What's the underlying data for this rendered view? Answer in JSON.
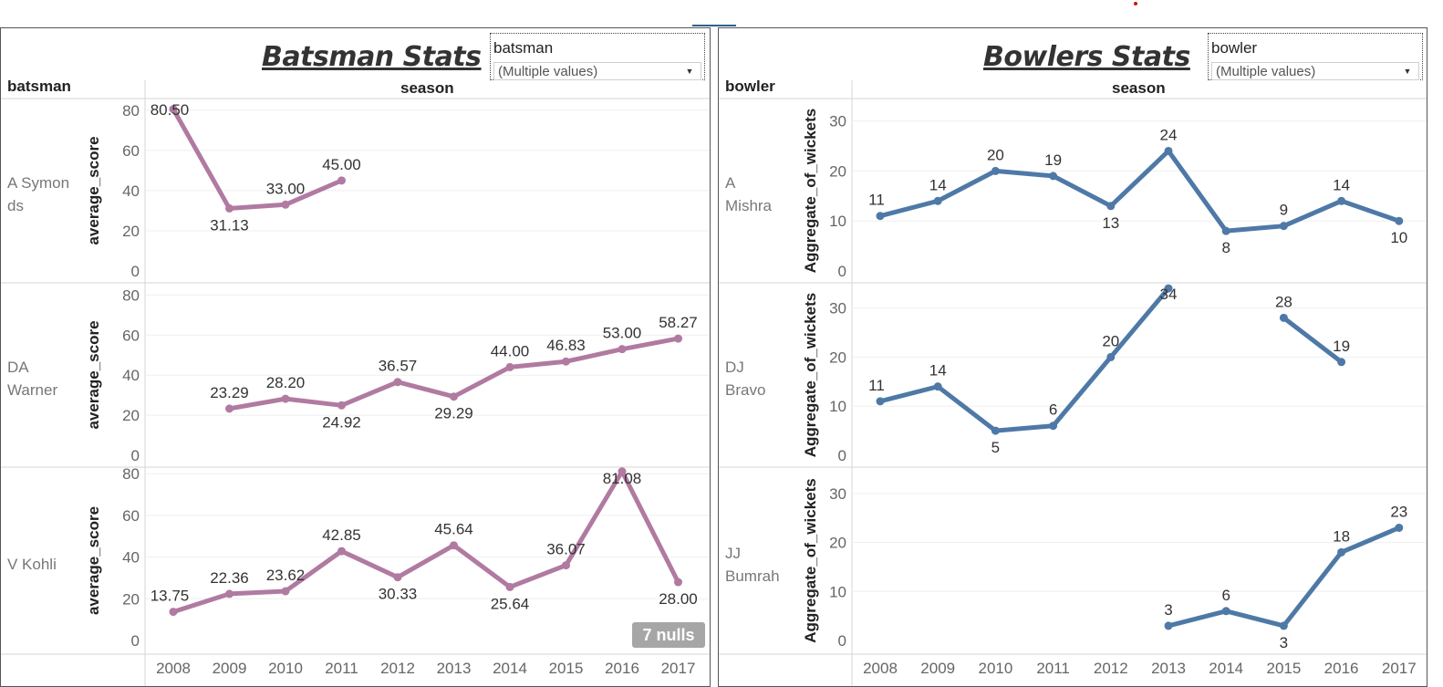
{
  "left": {
    "title": "Batsman Stats",
    "filter_label": "batsman",
    "filter_value": "(Multiple values)",
    "row_header": "batsman",
    "col_header": "season",
    "y_title": "average_score",
    "nulls_badge": "7 nulls",
    "rows": [
      {
        "label": "A Symon\nds"
      },
      {
        "label": "DA\nWarner"
      },
      {
        "label": "V Kohli"
      }
    ]
  },
  "right": {
    "title": "Bowlers Stats",
    "filter_label": "bowler",
    "filter_value": "(Multiple values)",
    "row_header": "bowler",
    "col_header": "season",
    "y_title": "Aggregate_of_wickets",
    "rows": [
      {
        "label": "A\nMishra"
      },
      {
        "label": "DJ\nBravo"
      },
      {
        "label": "JJ\nBumrah"
      }
    ]
  },
  "chart_data": [
    {
      "type": "line",
      "title": "Batsman Stats",
      "xlabel": "season",
      "ylabel": "average_score",
      "x": [
        2008,
        2009,
        2010,
        2011,
        2012,
        2013,
        2014,
        2015,
        2016,
        2017
      ],
      "ylim": [
        0,
        80
      ],
      "yticks": [
        0,
        20,
        40,
        60,
        80
      ],
      "color": "#b07aa1",
      "series": [
        {
          "name": "A Symonds",
          "values": [
            80.5,
            31.13,
            33.0,
            45.0,
            null,
            null,
            null,
            null,
            null,
            null
          ],
          "labels": [
            "80.50",
            "31.13",
            "33.00",
            "45.00",
            null,
            null,
            null,
            null,
            null,
            null
          ]
        },
        {
          "name": "DA Warner",
          "values": [
            null,
            23.29,
            28.2,
            24.92,
            36.57,
            29.29,
            44.0,
            46.83,
            53.0,
            58.27
          ],
          "labels": [
            null,
            "23.29",
            "28.20",
            "24.92",
            "36.57",
            "29.29",
            "44.00",
            "46.83",
            "53.00",
            "58.27"
          ]
        },
        {
          "name": "V Kohli",
          "values": [
            13.75,
            22.36,
            23.62,
            42.85,
            30.33,
            45.64,
            25.64,
            36.07,
            81.08,
            28.0
          ],
          "labels": [
            "13.75",
            "22.36",
            "23.62",
            "42.85",
            "30.33",
            "45.64",
            "25.64",
            "36.07",
            "81.08",
            "28.00"
          ]
        }
      ]
    },
    {
      "type": "line",
      "title": "Bowlers Stats",
      "xlabel": "season",
      "ylabel": "Aggregate_of_wickets",
      "x": [
        2008,
        2009,
        2010,
        2011,
        2012,
        2013,
        2014,
        2015,
        2016,
        2017
      ],
      "ylim": [
        0,
        36
      ],
      "yticks": [
        0,
        10,
        20,
        30
      ],
      "color": "#4e79a7",
      "series": [
        {
          "name": "A Mishra",
          "values": [
            11,
            14,
            20,
            19,
            13,
            24,
            8,
            9,
            14,
            10
          ],
          "labels": [
            "11",
            "14",
            "20",
            "19",
            "13",
            "24",
            "8",
            "9",
            "14",
            "10"
          ]
        },
        {
          "name": "DJ Bravo",
          "values": [
            11,
            14,
            5,
            6,
            20,
            34,
            null,
            28,
            19,
            null
          ],
          "labels": [
            "11",
            "14",
            "5",
            "6",
            "20",
            "34",
            null,
            "28",
            "19",
            null
          ]
        },
        {
          "name": "JJ Bumrah",
          "values": [
            null,
            null,
            null,
            null,
            null,
            3,
            6,
            3,
            18,
            23
          ],
          "labels": [
            null,
            null,
            null,
            null,
            null,
            "3",
            "6",
            "3",
            "18",
            "23"
          ]
        }
      ]
    }
  ]
}
